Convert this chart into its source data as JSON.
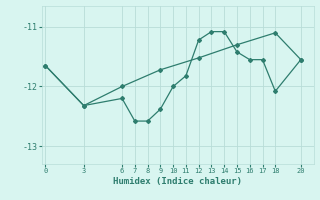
{
  "line1_x": [
    0,
    3,
    6,
    7,
    8,
    9,
    10,
    11,
    12,
    13,
    14,
    15,
    16,
    17,
    18,
    20
  ],
  "line1_y": [
    -11.65,
    -12.32,
    -12.2,
    -12.58,
    -12.58,
    -12.38,
    -12.0,
    -11.82,
    -11.22,
    -11.08,
    -11.08,
    -11.42,
    -11.55,
    -11.55,
    -12.08,
    -11.55
  ],
  "line2_x": [
    0,
    3,
    6,
    9,
    12,
    15,
    18,
    20
  ],
  "line2_y": [
    -11.65,
    -12.32,
    -12.0,
    -11.72,
    -11.52,
    -11.3,
    -11.1,
    -11.55
  ],
  "line_color": "#2e7d6e",
  "bg_color": "#d8f5f0",
  "grid_color": "#b8ddd8",
  "xlabel": "Humidex (Indice chaleur)",
  "xticks": [
    0,
    3,
    6,
    7,
    8,
    9,
    10,
    11,
    12,
    13,
    14,
    15,
    16,
    17,
    18,
    20
  ],
  "yticks": [
    -11,
    -12,
    -13
  ],
  "ylim": [
    -13.3,
    -10.65
  ],
  "xlim": [
    -0.3,
    21.0
  ]
}
